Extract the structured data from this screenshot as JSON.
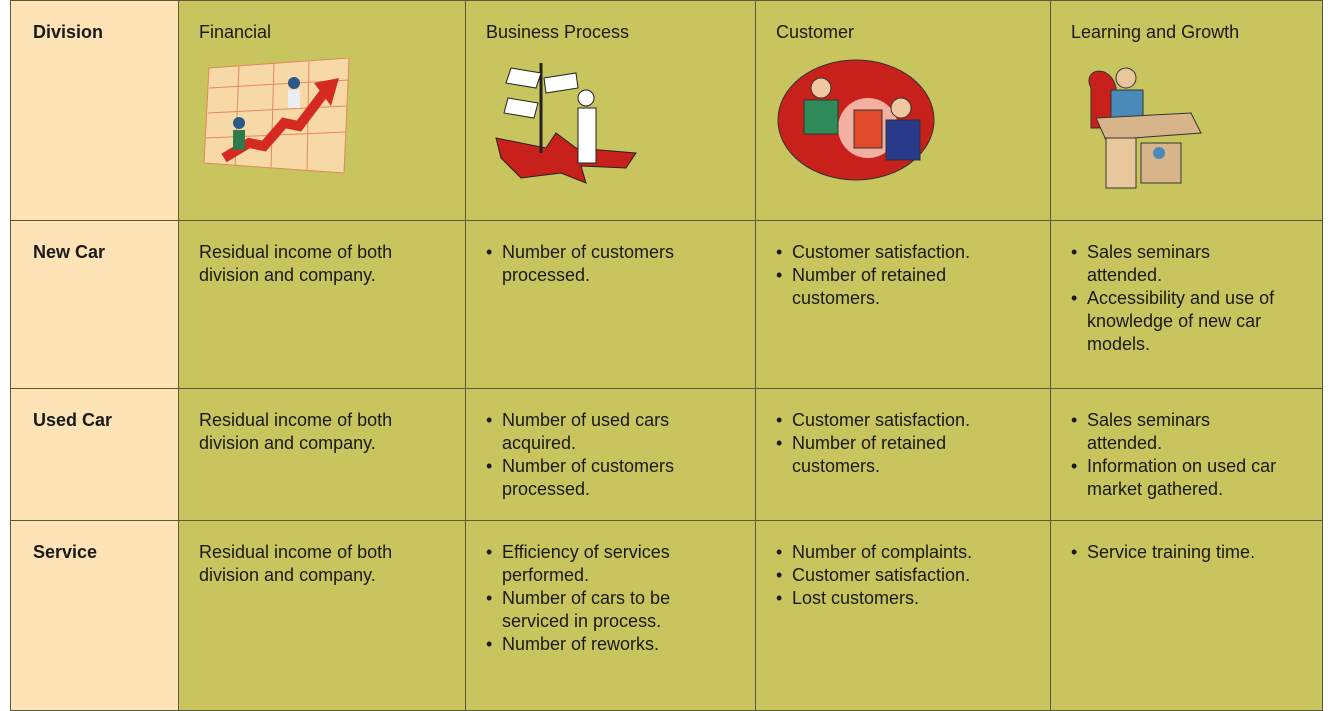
{
  "table": {
    "header": [
      "Division",
      "Financial",
      "Business Process",
      "Customer",
      "Learning and Growth"
    ],
    "rows": [
      [
        "New Car",
        "Residual income of both division and company.",
        [
          "Number of customers processed."
        ],
        [
          "Customer satisfaction.",
          "Number of retained customers."
        ],
        [
          "Sales seminars attended.",
          "Accessibility and use of knowledge of new car models."
        ]
      ],
      [
        "Used Car",
        "Residual income of both division and company.",
        [
          "Number of used cars acquired.",
          "Number of customers processed."
        ],
        [
          "Customer satisfaction.",
          "Number of retained customers."
        ],
        [
          "Sales seminars attended.",
          "Information on used car market gathered."
        ]
      ],
      [
        "Service",
        "Residual income of both division and company.",
        [
          "Efficiency of services performed.",
          "Number of cars to be serviced in process.",
          "Number of reworks."
        ],
        [
          "Number of complaints.",
          "Customer satisfaction.",
          "Lost customers."
        ],
        [
          "Service training time."
        ]
      ]
    ]
  }
}
